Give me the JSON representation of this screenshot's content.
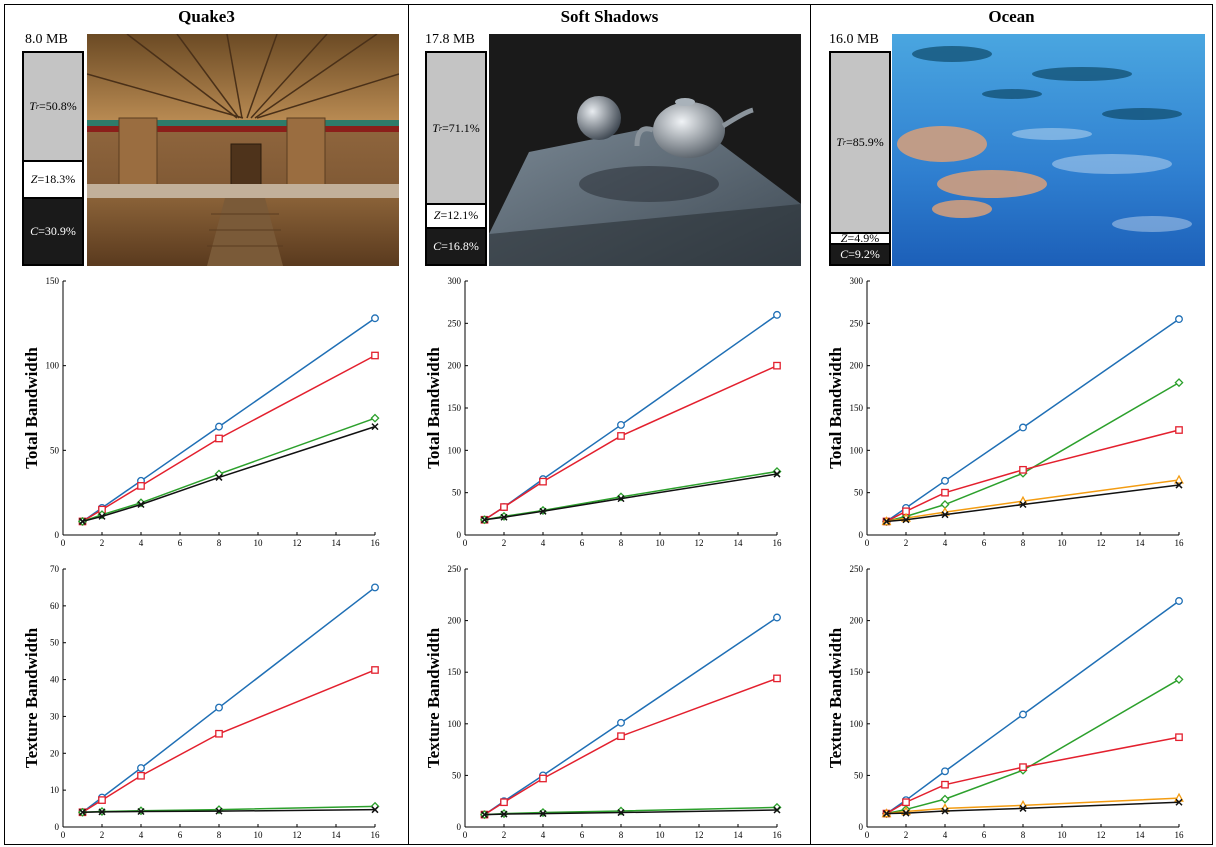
{
  "legend_colors": {
    "blue": "#1f6fb5",
    "red": "#e3202e",
    "green": "#2ca02c",
    "orange": "#f39c12",
    "black": "#111111"
  },
  "columns": [
    {
      "title": "Quake3",
      "memory_label": "8.0 MB",
      "breakdown": {
        "tr": {
          "prefix": "T",
          "sub": "r",
          "text": "=50.8%",
          "value": 50.8
        },
        "z": {
          "prefix": "Z",
          "text": "=18.3%",
          "value": 18.3
        },
        "c": {
          "prefix": "C",
          "text": "=30.9%",
          "value": 30.9
        }
      },
      "render_image": "quake3-temple-scene"
    },
    {
      "title": "Soft Shadows",
      "memory_label": "17.8 MB",
      "breakdown": {
        "tr": {
          "prefix": "T",
          "sub": "r",
          "text": "=71.1%",
          "value": 71.1
        },
        "z": {
          "prefix": "Z",
          "text": "=12.1%",
          "value": 12.1
        },
        "c": {
          "prefix": "C",
          "text": "=16.8%",
          "value": 16.8
        }
      },
      "render_image": "teapot-sphere-soft-shadows-scene"
    },
    {
      "title": "Ocean",
      "memory_label": "16.0 MB",
      "breakdown": {
        "tr": {
          "prefix": "T",
          "sub": "r",
          "text": "=85.9%",
          "value": 85.9
        },
        "z": {
          "prefix": "Z",
          "text": "=4.9%",
          "value": 4.9
        },
        "c": {
          "prefix": "C",
          "text": "=9.2%",
          "value": 9.2
        }
      },
      "render_image": "ocean-water-surface-scene"
    }
  ],
  "chart_data": [
    {
      "id": "quake3-total",
      "type": "line",
      "ylabel": "Total Bandwidth",
      "xlim": [
        0,
        16
      ],
      "ylim": [
        0,
        150
      ],
      "xticks": [
        0,
        2,
        4,
        6,
        8,
        10,
        12,
        14,
        16
      ],
      "yticks": [
        0,
        50,
        100,
        150
      ],
      "series": [
        {
          "color": "blue",
          "marker": "circle",
          "x": [
            1,
            2,
            4,
            8,
            16
          ],
          "y": [
            8,
            16,
            32,
            64,
            128
          ]
        },
        {
          "color": "red",
          "marker": "square",
          "x": [
            1,
            2,
            4,
            8,
            16
          ],
          "y": [
            8,
            15,
            29,
            57,
            106
          ]
        },
        {
          "color": "green",
          "marker": "diamond",
          "x": [
            1,
            2,
            4,
            8,
            16
          ],
          "y": [
            8,
            12,
            19,
            36,
            69
          ]
        },
        {
          "color": "black",
          "marker": "x",
          "x": [
            1,
            2,
            4,
            8,
            16
          ],
          "y": [
            8,
            11,
            18,
            34,
            64
          ]
        }
      ]
    },
    {
      "id": "soft-shadows-total",
      "type": "line",
      "ylabel": "Total Bandwidth",
      "xlim": [
        0,
        16
      ],
      "ylim": [
        0,
        300
      ],
      "xticks": [
        0,
        2,
        4,
        6,
        8,
        10,
        12,
        14,
        16
      ],
      "yticks": [
        0,
        50,
        100,
        150,
        200,
        250,
        300
      ],
      "series": [
        {
          "color": "blue",
          "marker": "circle",
          "x": [
            1,
            2,
            4,
            8,
            16
          ],
          "y": [
            18,
            33,
            66,
            130,
            260
          ]
        },
        {
          "color": "red",
          "marker": "square",
          "x": [
            1,
            2,
            4,
            8,
            16
          ],
          "y": [
            18,
            33,
            63,
            117,
            200
          ]
        },
        {
          "color": "green",
          "marker": "diamond",
          "x": [
            1,
            2,
            4,
            8,
            16
          ],
          "y": [
            18,
            22,
            29,
            45,
            75
          ]
        },
        {
          "color": "black",
          "marker": "x",
          "x": [
            1,
            2,
            4,
            8,
            16
          ],
          "y": [
            18,
            21,
            28,
            43,
            72
          ]
        }
      ]
    },
    {
      "id": "ocean-total",
      "type": "line",
      "ylabel": "Total Bandwidth",
      "xlim": [
        0,
        16
      ],
      "ylim": [
        0,
        300
      ],
      "xticks": [
        0,
        2,
        4,
        6,
        8,
        10,
        12,
        14,
        16
      ],
      "yticks": [
        0,
        50,
        100,
        150,
        200,
        250,
        300
      ],
      "series": [
        {
          "color": "blue",
          "marker": "circle",
          "x": [
            1,
            2,
            4,
            8,
            16
          ],
          "y": [
            16,
            32,
            64,
            127,
            255
          ]
        },
        {
          "color": "green",
          "marker": "diamond",
          "x": [
            1,
            2,
            4,
            8,
            16
          ],
          "y": [
            16,
            22,
            36,
            73,
            180
          ]
        },
        {
          "color": "red",
          "marker": "square",
          "x": [
            1,
            2,
            4,
            8,
            16
          ],
          "y": [
            16,
            28,
            50,
            77,
            124
          ]
        },
        {
          "color": "orange",
          "marker": "triangle",
          "x": [
            1,
            2,
            4,
            8,
            16
          ],
          "y": [
            16,
            20,
            27,
            40,
            65
          ]
        },
        {
          "color": "black",
          "marker": "x",
          "x": [
            1,
            2,
            4,
            8,
            16
          ],
          "y": [
            16,
            18,
            24,
            36,
            59
          ]
        }
      ]
    },
    {
      "id": "quake3-texture",
      "type": "line",
      "ylabel": "Texture Bandwidth",
      "xlim": [
        0,
        16
      ],
      "ylim": [
        0,
        70
      ],
      "xticks": [
        0,
        2,
        4,
        6,
        8,
        10,
        12,
        14,
        16
      ],
      "yticks": [
        0,
        10,
        20,
        30,
        40,
        50,
        60,
        70
      ],
      "series": [
        {
          "color": "blue",
          "marker": "circle",
          "x": [
            1,
            2,
            4,
            8,
            16
          ],
          "y": [
            4,
            8,
            16,
            32.4,
            65
          ]
        },
        {
          "color": "red",
          "marker": "square",
          "x": [
            1,
            2,
            4,
            8,
            16
          ],
          "y": [
            4,
            7.3,
            13.9,
            25.3,
            42.6
          ]
        },
        {
          "color": "green",
          "marker": "diamond",
          "x": [
            1,
            2,
            4,
            8,
            16
          ],
          "y": [
            4,
            4.2,
            4.4,
            4.7,
            5.6
          ]
        },
        {
          "color": "black",
          "marker": "x",
          "x": [
            1,
            2,
            4,
            8,
            16
          ],
          "y": [
            4,
            4.1,
            4.2,
            4.3,
            4.7
          ]
        }
      ]
    },
    {
      "id": "soft-shadows-texture",
      "type": "line",
      "ylabel": "Texture Bandwidth",
      "xlim": [
        0,
        16
      ],
      "ylim": [
        0,
        250
      ],
      "xticks": [
        0,
        2,
        4,
        6,
        8,
        10,
        12,
        14,
        16
      ],
      "yticks": [
        0,
        50,
        100,
        150,
        200,
        250
      ],
      "series": [
        {
          "color": "blue",
          "marker": "circle",
          "x": [
            1,
            2,
            4,
            8,
            16
          ],
          "y": [
            12,
            25,
            50,
            101,
            203
          ]
        },
        {
          "color": "red",
          "marker": "square",
          "x": [
            1,
            2,
            4,
            8,
            16
          ],
          "y": [
            12,
            24,
            47,
            88,
            144
          ]
        },
        {
          "color": "green",
          "marker": "diamond",
          "x": [
            1,
            2,
            4,
            8,
            16
          ],
          "y": [
            12,
            13,
            14,
            15.5,
            19
          ]
        },
        {
          "color": "black",
          "marker": "x",
          "x": [
            1,
            2,
            4,
            8,
            16
          ],
          "y": [
            12,
            12.5,
            13,
            14,
            16.5
          ]
        }
      ]
    },
    {
      "id": "ocean-texture",
      "type": "line",
      "ylabel": "Texture Bandwidth",
      "xlim": [
        0,
        16
      ],
      "ylim": [
        0,
        250
      ],
      "xticks": [
        0,
        2,
        4,
        6,
        8,
        10,
        12,
        14,
        16
      ],
      "yticks": [
        0,
        50,
        100,
        150,
        200,
        250
      ],
      "series": [
        {
          "color": "blue",
          "marker": "circle",
          "x": [
            1,
            2,
            4,
            8,
            16
          ],
          "y": [
            13,
            26,
            54,
            109,
            219
          ]
        },
        {
          "color": "green",
          "marker": "diamond",
          "x": [
            1,
            2,
            4,
            8,
            16
          ],
          "y": [
            13,
            17,
            27,
            55,
            143
          ]
        },
        {
          "color": "red",
          "marker": "square",
          "x": [
            1,
            2,
            4,
            8,
            16
          ],
          "y": [
            13,
            24,
            41,
            58,
            87
          ]
        },
        {
          "color": "orange",
          "marker": "triangle",
          "x": [
            1,
            2,
            4,
            8,
            16
          ],
          "y": [
            13,
            15,
            18,
            21,
            28
          ]
        },
        {
          "color": "black",
          "marker": "x",
          "x": [
            1,
            2,
            4,
            8,
            16
          ],
          "y": [
            13,
            13.5,
            15.5,
            18,
            24
          ]
        }
      ]
    }
  ]
}
